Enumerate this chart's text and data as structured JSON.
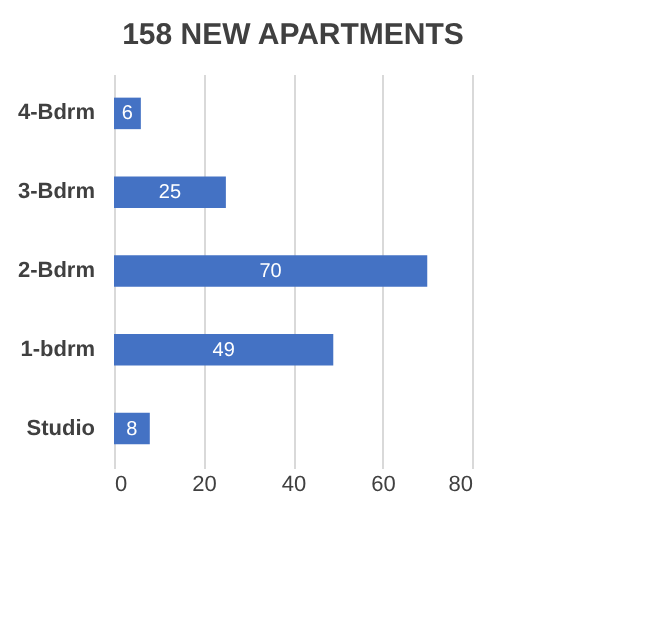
{
  "chart_data": {
    "type": "bar",
    "orientation": "horizontal",
    "title": "158 NEW APARTMENTS",
    "categories": [
      "4-Bdrm",
      "3-Bdrm",
      "2-Bdrm",
      "1-bdrm",
      "Studio"
    ],
    "values": [
      6,
      25,
      70,
      49,
      8
    ],
    "color": "#4472c4",
    "xlim": [
      0,
      80
    ],
    "xticks": [
      0,
      20,
      40,
      60,
      80
    ],
    "grid": "x",
    "data_labels": true
  }
}
